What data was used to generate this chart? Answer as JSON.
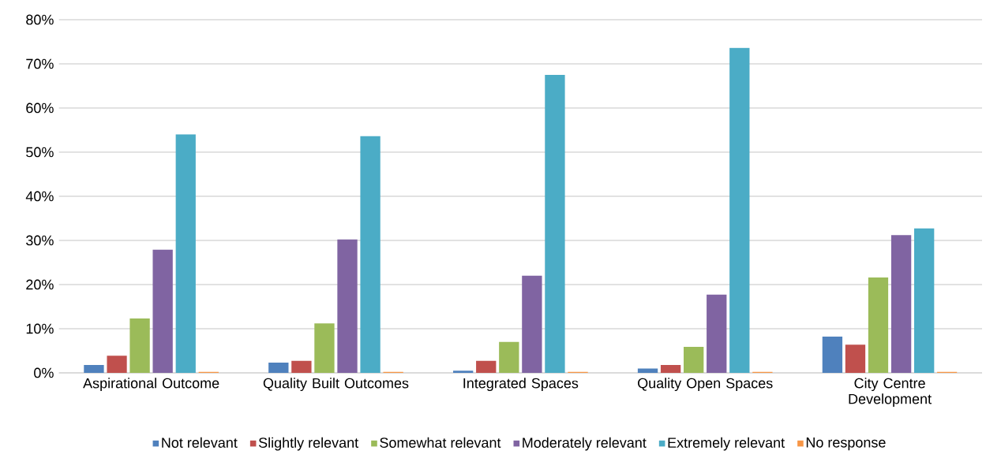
{
  "chart_data": {
    "type": "bar",
    "categories": [
      "Aspirational Outcome",
      "Quality Built Outcomes",
      "Integrated Spaces",
      "Quality Open Spaces",
      "City Centre Development"
    ],
    "series": [
      {
        "name": "Not relevant",
        "color": "#4f81bd",
        "values": [
          1.8,
          2.3,
          0.5,
          1.0,
          8.2
        ]
      },
      {
        "name": "Slightly relevant",
        "color": "#c0504d",
        "values": [
          3.9,
          2.7,
          2.7,
          1.8,
          6.4
        ]
      },
      {
        "name": "Somewhat relevant",
        "color": "#9bbb59",
        "values": [
          12.3,
          11.2,
          7.0,
          5.9,
          21.6
        ]
      },
      {
        "name": "Moderately relevant",
        "color": "#8064a2",
        "values": [
          27.9,
          30.2,
          22.0,
          17.7,
          31.2
        ]
      },
      {
        "name": "Extremely relevant",
        "color": "#4bacc6",
        "values": [
          54.0,
          53.6,
          67.5,
          73.6,
          32.7
        ]
      },
      {
        "name": "No response",
        "color": "#f79646",
        "values": [
          0.2,
          0.2,
          0.2,
          0.2,
          0.2
        ]
      }
    ],
    "ylim": [
      0,
      80
    ],
    "yticks": [
      {
        "value": 0,
        "label": "0%"
      },
      {
        "value": 10,
        "label": "10%"
      },
      {
        "value": 20,
        "label": "20%"
      },
      {
        "value": 30,
        "label": "30%"
      },
      {
        "value": 40,
        "label": "40%"
      },
      {
        "value": 50,
        "label": "50%"
      },
      {
        "value": 60,
        "label": "60%"
      },
      {
        "value": 70,
        "label": "70%"
      },
      {
        "value": 80,
        "label": "80%"
      }
    ],
    "grid": "y",
    "legend": "bottom"
  }
}
